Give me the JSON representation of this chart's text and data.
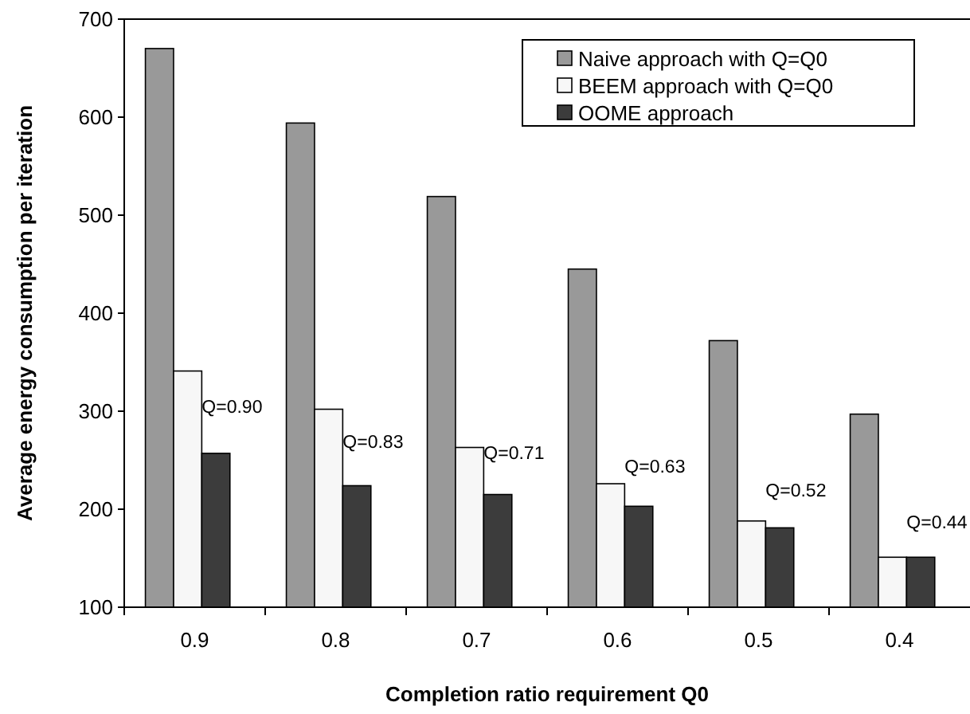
{
  "chart_data": {
    "type": "bar",
    "xlabel": "Completion ratio requirement Q0",
    "ylabel": "Average energy consumption per iteration",
    "categories": [
      "0.9",
      "0.8",
      "0.7",
      "0.6",
      "0.5",
      "0.4"
    ],
    "series": [
      {
        "name": "Naive approach with Q=Q0",
        "color": "#999999",
        "values": [
          670,
          594,
          519,
          445,
          372,
          297
        ]
      },
      {
        "name": "BEEM approach with Q=Q0",
        "color": "#f7f7f7",
        "values": [
          341,
          302,
          263,
          226,
          188,
          151
        ]
      },
      {
        "name": "OOME approach",
        "color": "#3c3c3c",
        "values": [
          257,
          224,
          215,
          203,
          181,
          151
        ]
      }
    ],
    "ylim": [
      100,
      700
    ],
    "yticks": [
      100,
      200,
      300,
      400,
      500,
      600,
      700
    ],
    "grid": false,
    "legend": "top right",
    "annotations": [
      "Q=0.90",
      "Q=0.83",
      "Q=0.71",
      "Q=0.63",
      "Q=0.52",
      "Q=0.44"
    ]
  }
}
